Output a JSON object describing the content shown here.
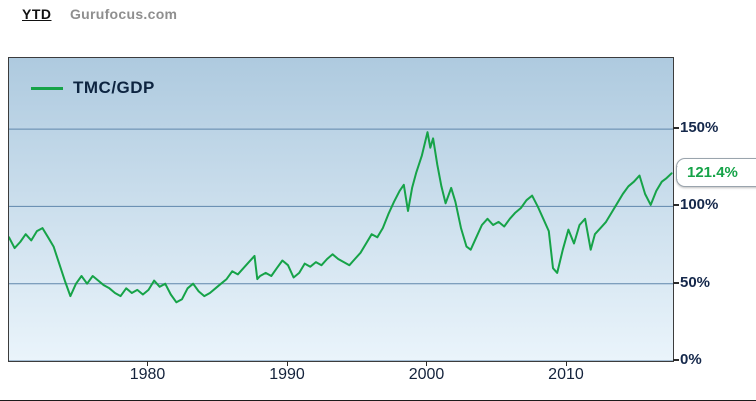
{
  "header": {
    "ytd": "YTD",
    "brand": "Gurufocus.com"
  },
  "legend": {
    "label": "TMC/GDP"
  },
  "callout": {
    "value_label": "121.4%"
  },
  "chart_data": {
    "type": "line",
    "title": "",
    "legend_entries": [
      "TMC/GDP"
    ],
    "legend_position": "top-left",
    "grid": "horizontal",
    "xlim": [
      1970,
      2017.6
    ],
    "ylim": [
      0,
      196
    ],
    "xticks": [
      1980,
      1990,
      2000,
      2010
    ],
    "xtick_labels": [
      "1980",
      "1990",
      "2000",
      "2010"
    ],
    "yticks": [
      0,
      50,
      100,
      150
    ],
    "ytick_labels": [
      "0%",
      "50%",
      "100%",
      "150%"
    ],
    "line_color": "#16a348",
    "grid_color": "#5f86ab",
    "bg_top": "#aecadf",
    "bg_bottom": "#eaf4fb",
    "current_value": 121.4,
    "series": [
      {
        "name": "TMC/GDP",
        "x": [
          1970.0,
          1970.4,
          1970.8,
          1971.2,
          1971.6,
          1972.0,
          1972.4,
          1972.8,
          1973.2,
          1973.6,
          1974.0,
          1974.4,
          1974.8,
          1975.2,
          1975.6,
          1976.0,
          1976.4,
          1976.8,
          1977.2,
          1977.6,
          1978.0,
          1978.4,
          1978.8,
          1979.2,
          1979.6,
          1980.0,
          1980.4,
          1980.8,
          1981.2,
          1981.6,
          1982.0,
          1982.4,
          1982.8,
          1983.2,
          1983.6,
          1984.0,
          1984.4,
          1984.8,
          1985.2,
          1985.6,
          1986.0,
          1986.4,
          1986.8,
          1987.2,
          1987.6,
          1987.8,
          1988.0,
          1988.4,
          1988.8,
          1989.2,
          1989.6,
          1990.0,
          1990.4,
          1990.8,
          1991.2,
          1991.6,
          1992.0,
          1992.4,
          1992.8,
          1993.2,
          1993.6,
          1994.0,
          1994.4,
          1994.8,
          1995.2,
          1995.6,
          1996.0,
          1996.4,
          1996.8,
          1997.2,
          1997.6,
          1998.0,
          1998.3,
          1998.6,
          1998.9,
          1999.2,
          1999.6,
          2000.0,
          2000.2,
          2000.4,
          2000.7,
          2001.0,
          2001.3,
          2001.7,
          2002.0,
          2002.4,
          2002.8,
          2003.1,
          2003.5,
          2003.9,
          2004.3,
          2004.7,
          2005.1,
          2005.5,
          2005.9,
          2006.3,
          2006.7,
          2007.1,
          2007.5,
          2007.9,
          2008.3,
          2008.7,
          2009.0,
          2009.3,
          2009.7,
          2010.1,
          2010.5,
          2010.9,
          2011.3,
          2011.7,
          2012.0,
          2012.4,
          2012.8,
          2013.2,
          2013.6,
          2014.0,
          2014.4,
          2014.8,
          2015.2,
          2015.6,
          2016.0,
          2016.4,
          2016.8,
          2017.1,
          2017.5
        ],
        "y": [
          80,
          73,
          77,
          82,
          78,
          84,
          86,
          80,
          74,
          63,
          52,
          42,
          50,
          55,
          50,
          55,
          52,
          49,
          47,
          44,
          42,
          47,
          44,
          46,
          43,
          46,
          52,
          48,
          50,
          43,
          38,
          40,
          47,
          50,
          45,
          42,
          44,
          47,
          50,
          53,
          58,
          56,
          60,
          64,
          68,
          53,
          55,
          57,
          55,
          60,
          65,
          62,
          54,
          57,
          63,
          61,
          64,
          62,
          66,
          69,
          66,
          64,
          62,
          66,
          70,
          76,
          82,
          80,
          86,
          95,
          103,
          110,
          114,
          97,
          112,
          122,
          133,
          148,
          138,
          144,
          127,
          113,
          102,
          112,
          103,
          86,
          74,
          72,
          80,
          88,
          92,
          88,
          90,
          87,
          92,
          96,
          99,
          104,
          107,
          100,
          92,
          84,
          60,
          57,
          72,
          85,
          76,
          88,
          92,
          72,
          82,
          86,
          90,
          96,
          102,
          108,
          113,
          116,
          120,
          108,
          101,
          110,
          116,
          118,
          121.4
        ]
      }
    ]
  }
}
